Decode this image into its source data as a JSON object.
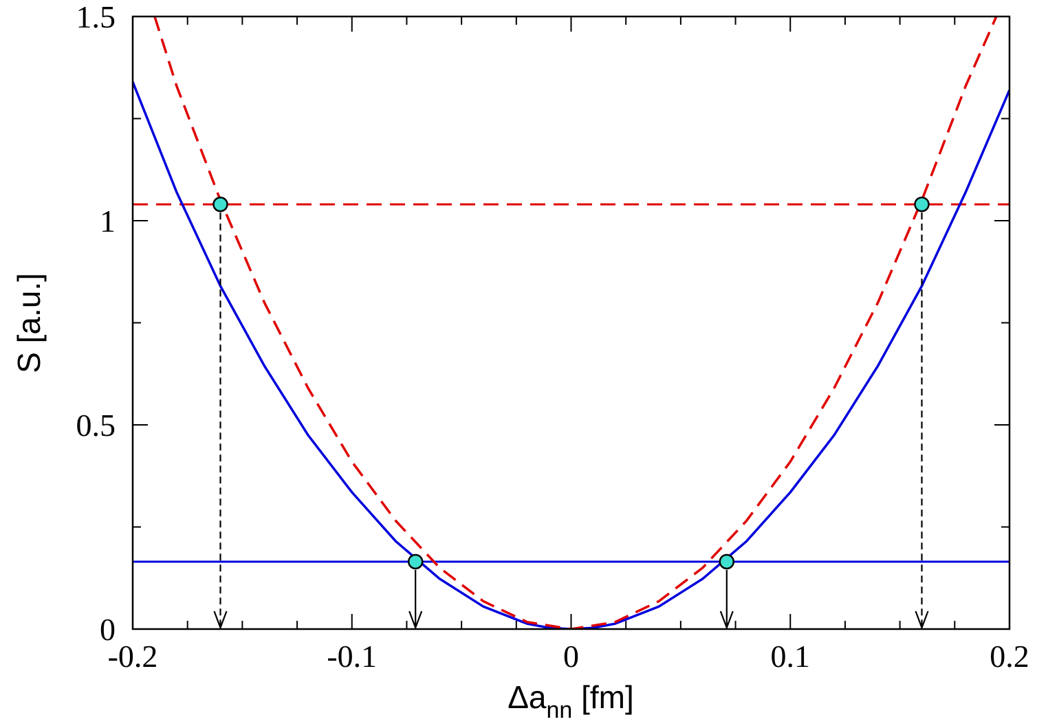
{
  "chart_data": {
    "type": "line",
    "xlabel": {
      "main": "Δa",
      "sub": "nn",
      "unit": " [fm]"
    },
    "ylabel": {
      "main": "S",
      "unit": " [a.u.]"
    },
    "xlim": [
      -0.2,
      0.2
    ],
    "ylim": [
      0,
      1.5
    ],
    "x_ticks": [
      -0.2,
      -0.1,
      0,
      0.1,
      0.2
    ],
    "x_tick_labels": [
      "-0.2",
      "-0.1",
      "0",
      "0.1",
      "0.2"
    ],
    "y_ticks": [
      0,
      0.5,
      1,
      1.5
    ],
    "y_tick_labels": [
      "0",
      "0.5",
      "1",
      "1.5"
    ],
    "series": [
      {
        "style": "solid",
        "color": "#0000dd",
        "x": [
          -0.2,
          -0.18,
          -0.16,
          -0.14,
          -0.12,
          -0.1,
          -0.08,
          -0.06,
          -0.04,
          -0.02,
          -0.01,
          0,
          0.01,
          0.02,
          0.04,
          0.06,
          0.08,
          0.1,
          0.12,
          0.14,
          0.16,
          0.18,
          0.2
        ],
        "y": [
          1.34,
          1.07,
          0.84,
          0.645,
          0.475,
          0.335,
          0.215,
          0.123,
          0.055,
          0.013,
          0.003,
          0.0,
          0.003,
          0.013,
          0.055,
          0.123,
          0.215,
          0.335,
          0.475,
          0.645,
          0.84,
          1.07,
          1.32
        ]
      },
      {
        "style": "dashed",
        "color": "#e00000",
        "x": [
          -0.19,
          -0.18,
          -0.16,
          -0.14,
          -0.12,
          -0.1,
          -0.08,
          -0.06,
          -0.04,
          -0.02,
          0,
          0.02,
          0.04,
          0.06,
          0.08,
          0.1,
          0.12,
          0.14,
          0.16,
          0.18,
          0.194
        ],
        "y": [
          1.5,
          1.33,
          1.05,
          0.8,
          0.59,
          0.41,
          0.265,
          0.15,
          0.068,
          0.017,
          0.0,
          0.017,
          0.068,
          0.15,
          0.265,
          0.41,
          0.59,
          0.8,
          1.05,
          1.33,
          1.5
        ]
      }
    ],
    "horizontal_lines": [
      {
        "y": 1.04,
        "style": "dashed",
        "color": "#e00000"
      },
      {
        "y": 0.165,
        "style": "solid",
        "color": "#0000dd"
      }
    ],
    "markers": [
      {
        "x": -0.16,
        "y": 1.04,
        "color": "#40e0d0"
      },
      {
        "x": 0.16,
        "y": 1.04,
        "color": "#40e0d0"
      },
      {
        "x": -0.071,
        "y": 0.165,
        "color": "#40e0d0"
      },
      {
        "x": 0.071,
        "y": 0.165,
        "color": "#40e0d0"
      }
    ],
    "arrows": [
      {
        "x": -0.16,
        "y_from": 1.04,
        "y_to": 0,
        "style": "dashed"
      },
      {
        "x": 0.16,
        "y_from": 1.04,
        "y_to": 0,
        "style": "dashed"
      },
      {
        "x": -0.071,
        "y_from": 0.165,
        "y_to": 0,
        "style": "solid"
      },
      {
        "x": 0.071,
        "y_from": 0.165,
        "y_to": 0,
        "style": "solid"
      }
    ]
  }
}
